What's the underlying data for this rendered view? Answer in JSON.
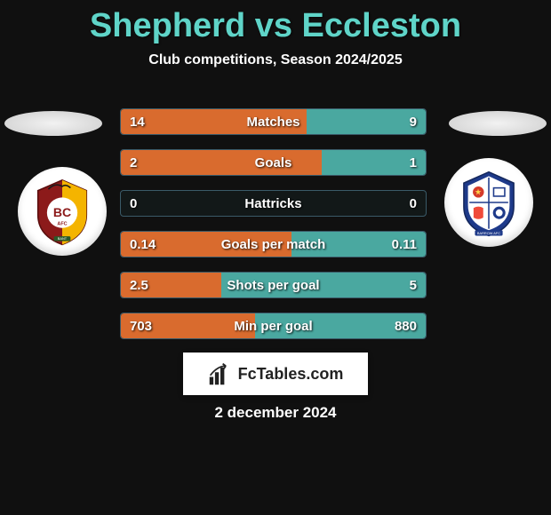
{
  "title": "Shepherd vs Eccleston",
  "subtitle": "Club competitions, Season 2024/2025",
  "date": "2 december 2024",
  "colors": {
    "background": "#101010",
    "title": "#5fd4c8",
    "text": "#ffffff",
    "bar_left": "#d96b2e",
    "bar_right": "#4aa8a0",
    "row_border": "#3a5a68",
    "row_bg": "#121818"
  },
  "watermark": {
    "text": "FcTables.com"
  },
  "stats": [
    {
      "label": "Matches",
      "left_val": "14",
      "right_val": "9",
      "left_pct": 61,
      "right_pct": 39
    },
    {
      "label": "Goals",
      "left_val": "2",
      "right_val": "1",
      "left_pct": 66,
      "right_pct": 34
    },
    {
      "label": "Hattricks",
      "left_val": "0",
      "right_val": "0",
      "left_pct": 0,
      "right_pct": 0
    },
    {
      "label": "Goals per match",
      "left_val": "0.14",
      "right_val": "0.11",
      "left_pct": 56,
      "right_pct": 44
    },
    {
      "label": "Shots per goal",
      "left_val": "2.5",
      "right_val": "5",
      "left_pct": 33,
      "right_pct": 67
    },
    {
      "label": "Min per goal",
      "left_val": "703",
      "right_val": "880",
      "left_pct": 44,
      "right_pct": 56
    }
  ],
  "crest_left": {
    "name": "club-crest-left"
  },
  "crest_right": {
    "name": "club-crest-right"
  }
}
